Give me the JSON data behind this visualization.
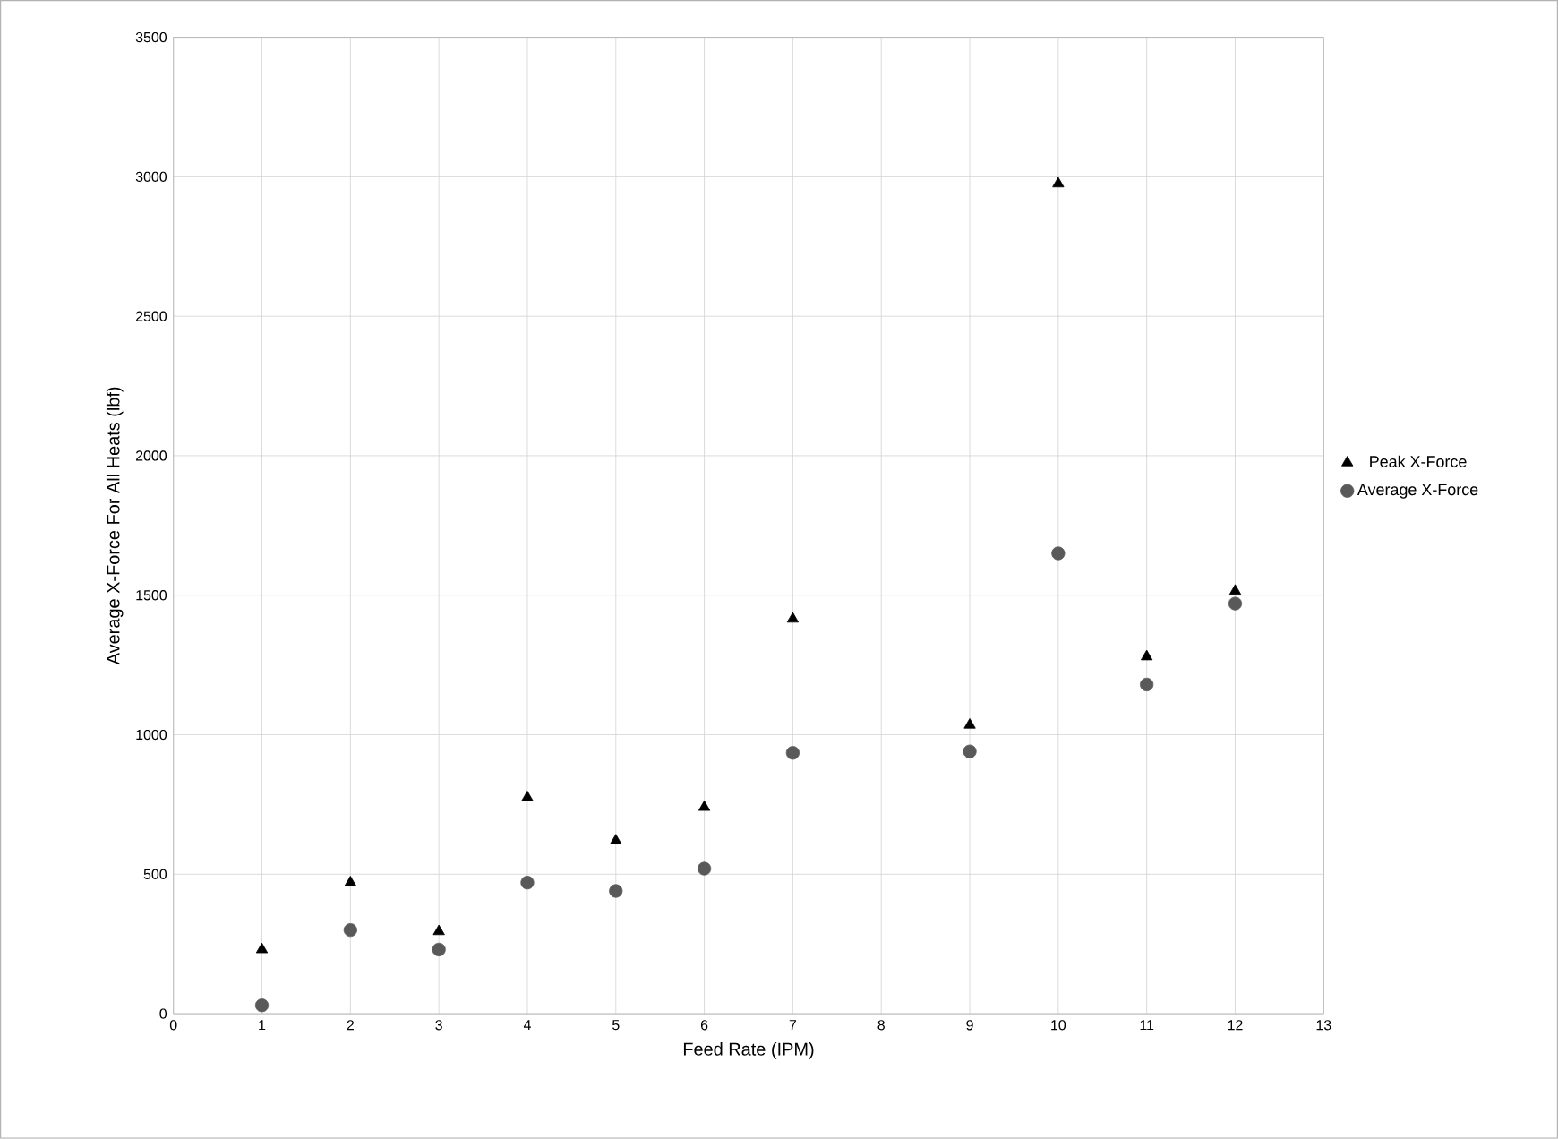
{
  "chart_data": {
    "type": "scatter",
    "xlabel": "Feed Rate (IPM)",
    "ylabel": "Average X-Force For All Heats (lbf)",
    "xlim": [
      0,
      13
    ],
    "xticks": [
      0,
      1,
      2,
      3,
      4,
      5,
      6,
      7,
      8,
      9,
      10,
      11,
      12,
      13
    ],
    "ylim": [
      0,
      3500
    ],
    "yticks": [
      0,
      500,
      1000,
      1500,
      2000,
      2500,
      3000,
      3500
    ],
    "grid": true,
    "legend": "right",
    "series": [
      {
        "name": "Peak X-Force",
        "color": "#000000",
        "marker": "triangle",
        "x": [
          1,
          2,
          3,
          4,
          5,
          6,
          7,
          9,
          10,
          11,
          12
        ],
        "values": [
          230,
          470,
          295,
          775,
          620,
          740,
          1415,
          1035,
          2975,
          1280,
          1515
        ]
      },
      {
        "name": "Average X-Force",
        "color": "#595959",
        "marker": "circle",
        "x": [
          1,
          2,
          3,
          4,
          5,
          6,
          7,
          9,
          10,
          11,
          12
        ],
        "values": [
          30,
          300,
          230,
          470,
          440,
          520,
          935,
          940,
          1650,
          1180,
          1470
        ]
      }
    ]
  }
}
